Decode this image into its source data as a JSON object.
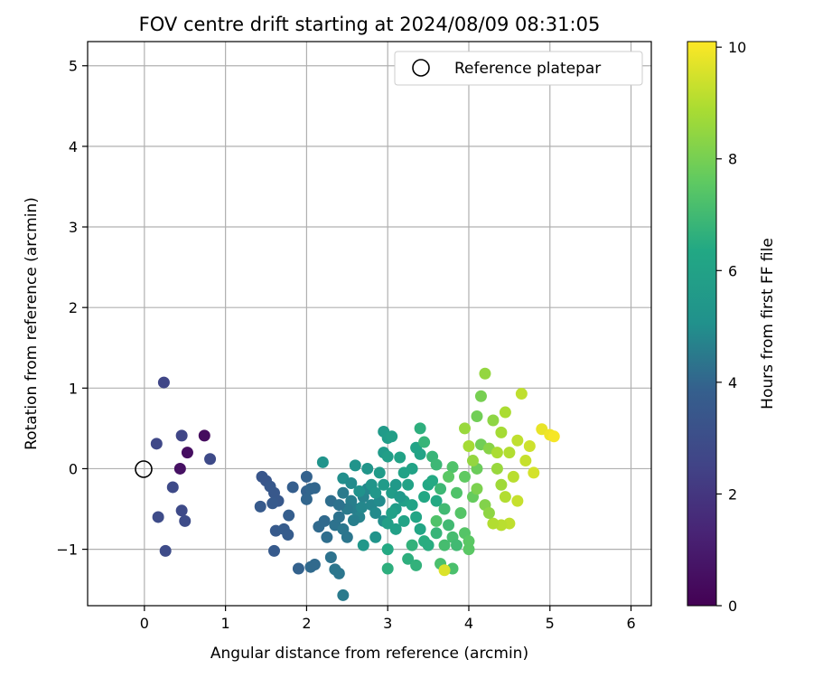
{
  "chart_data": {
    "type": "scatter",
    "title": "FOV centre drift starting at 2024/08/09 08:31:05",
    "xlabel": "Angular distance from reference (arcmin)",
    "ylabel": "Rotation from reference (arcmin)",
    "xlim": [
      -0.7,
      6.25
    ],
    "ylim": [
      -1.7,
      5.3
    ],
    "xticks": [
      0,
      1,
      2,
      3,
      4,
      5,
      6
    ],
    "yticks": [
      -1,
      0,
      1,
      2,
      3,
      4,
      5
    ],
    "grid": true,
    "legend": {
      "placement": "top-right",
      "entries": [
        "Reference platepar"
      ]
    },
    "reference_point": {
      "x": 0,
      "y": 0
    },
    "colorbar": {
      "label": "Hours from first FF file",
      "colormap": "viridis",
      "range": [
        0,
        10.1
      ],
      "ticks": [
        0,
        2,
        4,
        6,
        8,
        10
      ]
    },
    "points": [
      {
        "x": 0.74,
        "y": 0.41,
        "c": 0.4
      },
      {
        "x": 0.53,
        "y": 0.2,
        "c": 0.5
      },
      {
        "x": 0.44,
        "y": 0.0,
        "c": 0.6
      },
      {
        "x": 0.24,
        "y": 1.07,
        "c": 2.6
      },
      {
        "x": 0.46,
        "y": 0.41,
        "c": 2.6
      },
      {
        "x": 0.15,
        "y": 0.31,
        "c": 2.7
      },
      {
        "x": 0.81,
        "y": 0.12,
        "c": 2.8
      },
      {
        "x": 0.35,
        "y": -0.23,
        "c": 2.8
      },
      {
        "x": 0.46,
        "y": -0.52,
        "c": 2.8
      },
      {
        "x": 0.5,
        "y": -0.65,
        "c": 2.9
      },
      {
        "x": 0.17,
        "y": -0.6,
        "c": 2.9
      },
      {
        "x": 0.26,
        "y": -1.02,
        "c": 2.9
      },
      {
        "x": 1.45,
        "y": -0.1,
        "c": 3.4
      },
      {
        "x": 1.5,
        "y": -0.15,
        "c": 3.4
      },
      {
        "x": 1.55,
        "y": -0.22,
        "c": 3.5
      },
      {
        "x": 1.6,
        "y": -0.3,
        "c": 3.5
      },
      {
        "x": 1.65,
        "y": -0.4,
        "c": 3.5
      },
      {
        "x": 1.58,
        "y": -0.43,
        "c": 3.6
      },
      {
        "x": 1.43,
        "y": -0.47,
        "c": 3.6
      },
      {
        "x": 1.62,
        "y": -0.77,
        "c": 3.6
      },
      {
        "x": 1.72,
        "y": -0.75,
        "c": 3.7
      },
      {
        "x": 1.77,
        "y": -0.82,
        "c": 3.7
      },
      {
        "x": 1.6,
        "y": -1.02,
        "c": 3.6
      },
      {
        "x": 1.83,
        "y": -0.23,
        "c": 3.8
      },
      {
        "x": 1.78,
        "y": -0.58,
        "c": 3.8
      },
      {
        "x": 2.0,
        "y": -0.1,
        "c": 3.9
      },
      {
        "x": 2.0,
        "y": -0.28,
        "c": 3.9
      },
      {
        "x": 2.05,
        "y": -0.25,
        "c": 4.0
      },
      {
        "x": 2.1,
        "y": -0.24,
        "c": 4.0
      },
      {
        "x": 2.0,
        "y": -0.38,
        "c": 4.0
      },
      {
        "x": 2.15,
        "y": -0.72,
        "c": 4.1
      },
      {
        "x": 2.22,
        "y": -0.65,
        "c": 4.1
      },
      {
        "x": 2.3,
        "y": -0.4,
        "c": 4.2
      },
      {
        "x": 2.25,
        "y": -0.85,
        "c": 4.2
      },
      {
        "x": 2.35,
        "y": -0.7,
        "c": 4.3
      },
      {
        "x": 2.4,
        "y": -0.6,
        "c": 4.3
      },
      {
        "x": 2.45,
        "y": -0.75,
        "c": 4.4
      },
      {
        "x": 2.5,
        "y": -0.85,
        "c": 4.4
      },
      {
        "x": 2.45,
        "y": -0.3,
        "c": 4.5
      },
      {
        "x": 2.55,
        "y": -0.4,
        "c": 4.6
      },
      {
        "x": 2.6,
        "y": -0.5,
        "c": 4.6
      },
      {
        "x": 2.65,
        "y": -0.6,
        "c": 4.7
      },
      {
        "x": 2.7,
        "y": -0.35,
        "c": 4.7
      },
      {
        "x": 2.75,
        "y": -0.25,
        "c": 4.8
      },
      {
        "x": 2.8,
        "y": -0.45,
        "c": 4.8
      },
      {
        "x": 2.85,
        "y": -0.55,
        "c": 4.9
      },
      {
        "x": 2.9,
        "y": -0.4,
        "c": 4.9
      },
      {
        "x": 2.95,
        "y": -0.65,
        "c": 5.0
      },
      {
        "x": 2.3,
        "y": -1.1,
        "c": 4.3
      },
      {
        "x": 2.35,
        "y": -1.25,
        "c": 4.4
      },
      {
        "x": 2.4,
        "y": -1.3,
        "c": 4.4
      },
      {
        "x": 2.45,
        "y": -1.57,
        "c": 4.5
      },
      {
        "x": 2.05,
        "y": -1.22,
        "c": 4.1
      },
      {
        "x": 2.1,
        "y": -1.19,
        "c": 4.1
      },
      {
        "x": 1.9,
        "y": -1.24,
        "c": 3.9
      },
      {
        "x": 2.2,
        "y": 0.08,
        "c": 5.2
      },
      {
        "x": 2.45,
        "y": -0.12,
        "c": 5.0
      },
      {
        "x": 2.6,
        "y": 0.04,
        "c": 5.2
      },
      {
        "x": 2.75,
        "y": 0.0,
        "c": 5.3
      },
      {
        "x": 2.85,
        "y": -0.85,
        "c": 5.2
      },
      {
        "x": 2.7,
        "y": -0.95,
        "c": 5.4
      },
      {
        "x": 2.95,
        "y": 0.2,
        "c": 5.6
      },
      {
        "x": 2.95,
        "y": 0.46,
        "c": 5.6
      },
      {
        "x": 3.0,
        "y": 0.38,
        "c": 5.7
      },
      {
        "x": 3.05,
        "y": 0.4,
        "c": 5.8
      },
      {
        "x": 3.0,
        "y": 0.15,
        "c": 5.8
      },
      {
        "x": 2.9,
        "y": -0.05,
        "c": 5.6
      },
      {
        "x": 2.95,
        "y": -0.2,
        "c": 5.6
      },
      {
        "x": 3.05,
        "y": -0.3,
        "c": 5.7
      },
      {
        "x": 3.1,
        "y": -0.5,
        "c": 5.7
      },
      {
        "x": 3.0,
        "y": -0.68,
        "c": 5.8
      },
      {
        "x": 3.1,
        "y": -0.75,
        "c": 5.9
      },
      {
        "x": 3.2,
        "y": -0.4,
        "c": 5.9
      },
      {
        "x": 3.25,
        "y": -0.2,
        "c": 6.0
      },
      {
        "x": 3.3,
        "y": 0.0,
        "c": 6.0
      },
      {
        "x": 3.35,
        "y": 0.26,
        "c": 6.1
      },
      {
        "x": 3.4,
        "y": 0.18,
        "c": 6.1
      },
      {
        "x": 3.15,
        "y": 0.14,
        "c": 6.0
      },
      {
        "x": 3.2,
        "y": -0.05,
        "c": 6.0
      },
      {
        "x": 3.3,
        "y": -0.45,
        "c": 6.1
      },
      {
        "x": 3.35,
        "y": -0.6,
        "c": 6.2
      },
      {
        "x": 3.4,
        "y": -0.75,
        "c": 6.2
      },
      {
        "x": 3.45,
        "y": -0.35,
        "c": 6.3
      },
      {
        "x": 3.5,
        "y": -0.2,
        "c": 6.3
      },
      {
        "x": 3.55,
        "y": -0.15,
        "c": 6.4
      },
      {
        "x": 3.6,
        "y": -0.4,
        "c": 6.4
      },
      {
        "x": 3.45,
        "y": -0.9,
        "c": 6.5
      },
      {
        "x": 3.5,
        "y": -0.95,
        "c": 6.5
      },
      {
        "x": 3.0,
        "y": -1.0,
        "c": 6.4
      },
      {
        "x": 3.0,
        "y": -1.24,
        "c": 6.6
      },
      {
        "x": 3.25,
        "y": -1.12,
        "c": 6.6
      },
      {
        "x": 3.35,
        "y": -1.2,
        "c": 6.7
      },
      {
        "x": 3.3,
        "y": -0.95,
        "c": 6.7
      },
      {
        "x": 3.45,
        "y": 0.33,
        "c": 6.8
      },
      {
        "x": 3.55,
        "y": 0.15,
        "c": 6.8
      },
      {
        "x": 3.6,
        "y": 0.05,
        "c": 6.9
      },
      {
        "x": 3.65,
        "y": -0.25,
        "c": 6.9
      },
      {
        "x": 3.7,
        "y": -0.5,
        "c": 7.0
      },
      {
        "x": 3.75,
        "y": -0.7,
        "c": 7.0
      },
      {
        "x": 3.8,
        "y": -0.85,
        "c": 7.1
      },
      {
        "x": 3.7,
        "y": -0.95,
        "c": 7.1
      },
      {
        "x": 3.65,
        "y": -1.18,
        "c": 7.2
      },
      {
        "x": 3.8,
        "y": -1.24,
        "c": 7.2
      },
      {
        "x": 3.8,
        "y": 0.02,
        "c": 7.3
      },
      {
        "x": 3.85,
        "y": -0.3,
        "c": 7.3
      },
      {
        "x": 3.9,
        "y": -0.55,
        "c": 7.4
      },
      {
        "x": 3.95,
        "y": -0.8,
        "c": 7.4
      },
      {
        "x": 4.0,
        "y": -0.9,
        "c": 7.5
      },
      {
        "x": 4.0,
        "y": -1.0,
        "c": 7.5
      },
      {
        "x": 3.95,
        "y": -0.1,
        "c": 7.6
      },
      {
        "x": 4.05,
        "y": -0.35,
        "c": 7.7
      },
      {
        "x": 4.1,
        "y": 0.0,
        "c": 7.8
      },
      {
        "x": 4.15,
        "y": 0.3,
        "c": 7.9
      },
      {
        "x": 4.1,
        "y": 0.65,
        "c": 7.9
      },
      {
        "x": 4.15,
        "y": 0.9,
        "c": 8.0
      },
      {
        "x": 4.1,
        "y": -0.25,
        "c": 8.1
      },
      {
        "x": 4.2,
        "y": -0.45,
        "c": 8.2
      },
      {
        "x": 4.25,
        "y": 0.25,
        "c": 8.3
      },
      {
        "x": 4.3,
        "y": 0.6,
        "c": 8.4
      },
      {
        "x": 4.2,
        "y": 1.18,
        "c": 8.5
      },
      {
        "x": 4.35,
        "y": 0.0,
        "c": 8.6
      },
      {
        "x": 4.4,
        "y": -0.2,
        "c": 8.7
      },
      {
        "x": 4.4,
        "y": 0.45,
        "c": 8.8
      },
      {
        "x": 4.45,
        "y": 0.7,
        "c": 8.9
      },
      {
        "x": 4.5,
        "y": 0.2,
        "c": 9.0
      },
      {
        "x": 4.55,
        "y": -0.1,
        "c": 9.1
      },
      {
        "x": 4.6,
        "y": 0.35,
        "c": 9.2
      },
      {
        "x": 4.65,
        "y": 0.93,
        "c": 9.2
      },
      {
        "x": 4.7,
        "y": 0.1,
        "c": 9.3
      },
      {
        "x": 4.75,
        "y": 0.28,
        "c": 9.4
      },
      {
        "x": 4.8,
        "y": -0.05,
        "c": 9.5
      },
      {
        "x": 4.5,
        "y": -0.68,
        "c": 9.2
      },
      {
        "x": 4.4,
        "y": -0.7,
        "c": 9.1
      },
      {
        "x": 4.3,
        "y": -0.68,
        "c": 9.0
      },
      {
        "x": 4.9,
        "y": 0.49,
        "c": 9.8
      },
      {
        "x": 5.0,
        "y": 0.42,
        "c": 9.9
      },
      {
        "x": 5.05,
        "y": 0.4,
        "c": 10.0
      },
      {
        "x": 3.7,
        "y": -1.26,
        "c": 9.6
      },
      {
        "x": 4.0,
        "y": 0.28,
        "c": 8.8
      },
      {
        "x": 4.05,
        "y": 0.1,
        "c": 8.5
      },
      {
        "x": 3.95,
        "y": 0.5,
        "c": 8.6
      },
      {
        "x": 3.75,
        "y": -0.1,
        "c": 7.5
      },
      {
        "x": 3.6,
        "y": -0.65,
        "c": 7.3
      },
      {
        "x": 2.55,
        "y": -0.18,
        "c": 4.9
      },
      {
        "x": 2.65,
        "y": -0.28,
        "c": 5.1
      },
      {
        "x": 2.8,
        "y": -0.2,
        "c": 5.3
      },
      {
        "x": 2.85,
        "y": -0.3,
        "c": 5.4
      },
      {
        "x": 3.1,
        "y": -0.2,
        "c": 5.5
      },
      {
        "x": 3.15,
        "y": -0.35,
        "c": 5.5
      },
      {
        "x": 2.5,
        "y": -0.5,
        "c": 4.5
      },
      {
        "x": 2.58,
        "y": -0.64,
        "c": 4.6
      },
      {
        "x": 2.68,
        "y": -0.48,
        "c": 4.8
      },
      {
        "x": 2.4,
        "y": -0.45,
        "c": 4.3
      },
      {
        "x": 4.45,
        "y": -0.35,
        "c": 9.0
      },
      {
        "x": 4.6,
        "y": -0.4,
        "c": 9.3
      },
      {
        "x": 4.25,
        "y": -0.55,
        "c": 8.4
      },
      {
        "x": 4.35,
        "y": 0.2,
        "c": 8.9
      },
      {
        "x": 3.4,
        "y": 0.5,
        "c": 6.6
      },
      {
        "x": 3.6,
        "y": -0.8,
        "c": 6.8
      },
      {
        "x": 3.85,
        "y": -0.95,
        "c": 7.0
      },
      {
        "x": 3.2,
        "y": -0.65,
        "c": 6.1
      },
      {
        "x": 3.05,
        "y": -0.55,
        "c": 5.9
      }
    ]
  }
}
